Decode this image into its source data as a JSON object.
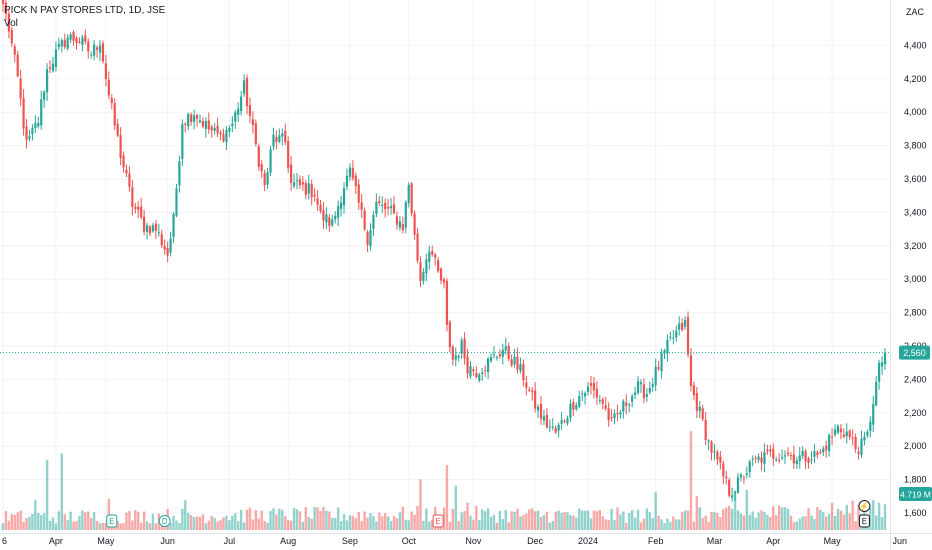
{
  "header": {
    "title": "PICK N PAY STORES LTD, 1D, JSE",
    "volume_label": "Vol"
  },
  "currency": "ZAC",
  "colors": {
    "up": "#26a69a",
    "down": "#ef5350",
    "grid": "#f0f3fa",
    "axis_text": "#131722",
    "price_line": "#26a69a"
  },
  "chart_data": {
    "type": "candlestick",
    "title": "PICK N PAY STORES LTD, 1D, JSE",
    "ylabel": "ZAC",
    "ylim": [
      1530,
      4750
    ],
    "y_ticks": [
      1600,
      1800,
      2000,
      2200,
      2400,
      2600,
      2800,
      3000,
      3200,
      3400,
      3600,
      3800,
      4000,
      4200,
      4400
    ],
    "y_tick_labels": [
      "1,600",
      "1,800",
      "2,000",
      "2,200",
      "2,400",
      "2,600",
      "2,800",
      "3,000",
      "3,200",
      "3,400",
      "3,600",
      "3,800",
      "4,000",
      "4,200",
      "4,400"
    ],
    "x_labels": [
      {
        "label": "6",
        "index": 0
      },
      {
        "label": "Apr",
        "index": 18
      },
      {
        "label": "May",
        "index": 35
      },
      {
        "label": "Jun",
        "index": 56
      },
      {
        "label": "Jul",
        "index": 77
      },
      {
        "label": "Aug",
        "index": 97
      },
      {
        "label": "Sep",
        "index": 118
      },
      {
        "label": "Oct",
        "index": 138
      },
      {
        "label": "Nov",
        "index": 160
      },
      {
        "label": "Dec",
        "index": 181
      },
      {
        "label": "2024",
        "index": 199
      },
      {
        "label": "Feb",
        "index": 222
      },
      {
        "label": "Mar",
        "index": 242
      },
      {
        "label": "Apr",
        "index": 262
      },
      {
        "label": "May",
        "index": 282
      },
      {
        "label": "Jun",
        "index": 305
      }
    ],
    "n_bars": 301,
    "price_anchors": [
      [
        0,
        4650
      ],
      [
        2,
        4500
      ],
      [
        5,
        4200
      ],
      [
        8,
        3800
      ],
      [
        12,
        3950
      ],
      [
        15,
        4250
      ],
      [
        18,
        4350
      ],
      [
        22,
        4450
      ],
      [
        26,
        4430
      ],
      [
        30,
        4350
      ],
      [
        33,
        4430
      ],
      [
        36,
        4100
      ],
      [
        40,
        3750
      ],
      [
        44,
        3450
      ],
      [
        48,
        3320
      ],
      [
        52,
        3300
      ],
      [
        56,
        3150
      ],
      [
        58,
        3350
      ],
      [
        61,
        3950
      ],
      [
        65,
        4000
      ],
      [
        70,
        3900
      ],
      [
        74,
        3850
      ],
      [
        78,
        3930
      ],
      [
        82,
        4150
      ],
      [
        86,
        3800
      ],
      [
        89,
        3550
      ],
      [
        92,
        3850
      ],
      [
        96,
        3820
      ],
      [
        98,
        3570
      ],
      [
        102,
        3550
      ],
      [
        106,
        3520
      ],
      [
        108,
        3380
      ],
      [
        112,
        3330
      ],
      [
        116,
        3560
      ],
      [
        118,
        3640
      ],
      [
        121,
        3450
      ],
      [
        124,
        3250
      ],
      [
        127,
        3450
      ],
      [
        132,
        3400
      ],
      [
        136,
        3320
      ],
      [
        138,
        3570
      ],
      [
        140,
        3250
      ],
      [
        142,
        3000
      ],
      [
        145,
        3200
      ],
      [
        148,
        3030
      ],
      [
        150,
        2950
      ],
      [
        151,
        2700
      ],
      [
        153,
        2520
      ],
      [
        156,
        2600
      ],
      [
        158,
        2480
      ],
      [
        161,
        2450
      ],
      [
        165,
        2500
      ],
      [
        170,
        2580
      ],
      [
        174,
        2500
      ],
      [
        177,
        2420
      ],
      [
        180,
        2280
      ],
      [
        184,
        2150
      ],
      [
        188,
        2080
      ],
      [
        191,
        2170
      ],
      [
        194,
        2260
      ],
      [
        197,
        2320
      ],
      [
        200,
        2350
      ],
      [
        204,
        2260
      ],
      [
        207,
        2130
      ],
      [
        210,
        2210
      ],
      [
        213,
        2290
      ],
      [
        216,
        2350
      ],
      [
        219,
        2320
      ],
      [
        223,
        2480
      ],
      [
        227,
        2630
      ],
      [
        230,
        2700
      ],
      [
        232,
        2730
      ],
      [
        234,
        2350
      ],
      [
        237,
        2200
      ],
      [
        240,
        2020
      ],
      [
        244,
        1860
      ],
      [
        247,
        1730
      ],
      [
        249,
        1750
      ],
      [
        252,
        1830
      ],
      [
        255,
        1900
      ],
      [
        258,
        1930
      ],
      [
        262,
        1950
      ],
      [
        266,
        1960
      ],
      [
        270,
        1930
      ],
      [
        274,
        1940
      ],
      [
        278,
        1950
      ],
      [
        281,
        2040
      ],
      [
        284,
        2110
      ],
      [
        287,
        2080
      ],
      [
        290,
        1990
      ],
      [
        292,
        2000
      ],
      [
        294,
        2060
      ],
      [
        296,
        2280
      ],
      [
        298,
        2460
      ],
      [
        300,
        2560
      ]
    ],
    "volume_ylim": [
      0,
      10
    ],
    "volume_anchors": [
      [
        0,
        0.9
      ],
      [
        60,
        1.0
      ],
      [
        150,
        1.1
      ],
      [
        230,
        1.0
      ],
      [
        300,
        1.4
      ]
    ],
    "volume_spikes": [
      {
        "index": 15,
        "value": 5.4
      },
      {
        "index": 20,
        "value": 5.9
      },
      {
        "index": 11,
        "value": 2.3
      },
      {
        "index": 36,
        "value": 2.4
      },
      {
        "index": 62,
        "value": 2.3
      },
      {
        "index": 142,
        "value": 3.9
      },
      {
        "index": 151,
        "value": 5.0
      },
      {
        "index": 154,
        "value": 3.4
      },
      {
        "index": 158,
        "value": 2.1
      },
      {
        "index": 234,
        "value": 7.6
      },
      {
        "index": 222,
        "value": 2.9
      },
      {
        "index": 236,
        "value": 2.6
      },
      {
        "index": 249,
        "value": 3.0
      },
      {
        "index": 253,
        "value": 3.1
      },
      {
        "index": 296,
        "value": 2.3
      },
      {
        "index": 298,
        "value": 2.1
      }
    ],
    "last_price": 2560,
    "last_price_label": "2,560",
    "last_volume_label": "4.719 M",
    "markers": [
      {
        "symbol": "E",
        "index": 37,
        "color": "#26a69a"
      },
      {
        "symbol": "D",
        "index": 55,
        "color": "#26a69a"
      },
      {
        "symbol": "E",
        "index": 148,
        "color": "#ef5350"
      },
      {
        "symbol": "⚡",
        "index": 293,
        "color": "#131722",
        "row": "upper"
      },
      {
        "symbol": "E",
        "index": 293,
        "color": "#131722"
      }
    ]
  }
}
